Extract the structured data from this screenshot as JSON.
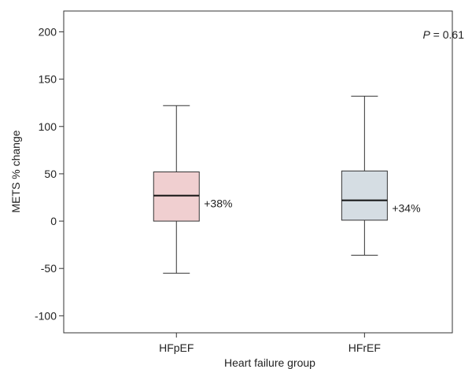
{
  "chart_data": {
    "type": "boxplot",
    "xlabel": "Heart failure group",
    "ylabel": "METS % change",
    "ylim": [
      -118,
      222
    ],
    "yticks": [
      200,
      150,
      100,
      50,
      0,
      -50,
      -100
    ],
    "grid": false,
    "legend": "none",
    "annotation": {
      "prefix": "P",
      "text": " = 0.61"
    },
    "categories": [
      "HFpEF",
      "HFrEF"
    ],
    "series": [
      {
        "category": "HFpEF",
        "min": -55,
        "q1": 0,
        "median": 27,
        "q3": 52,
        "max": 122,
        "label": "+38%",
        "color": "#f0cfd0"
      },
      {
        "category": "HFrEF",
        "min": -36,
        "q1": 1,
        "median": 22,
        "q3": 53,
        "max": 132,
        "label": "+34%",
        "color": "#d5dde3"
      }
    ]
  }
}
